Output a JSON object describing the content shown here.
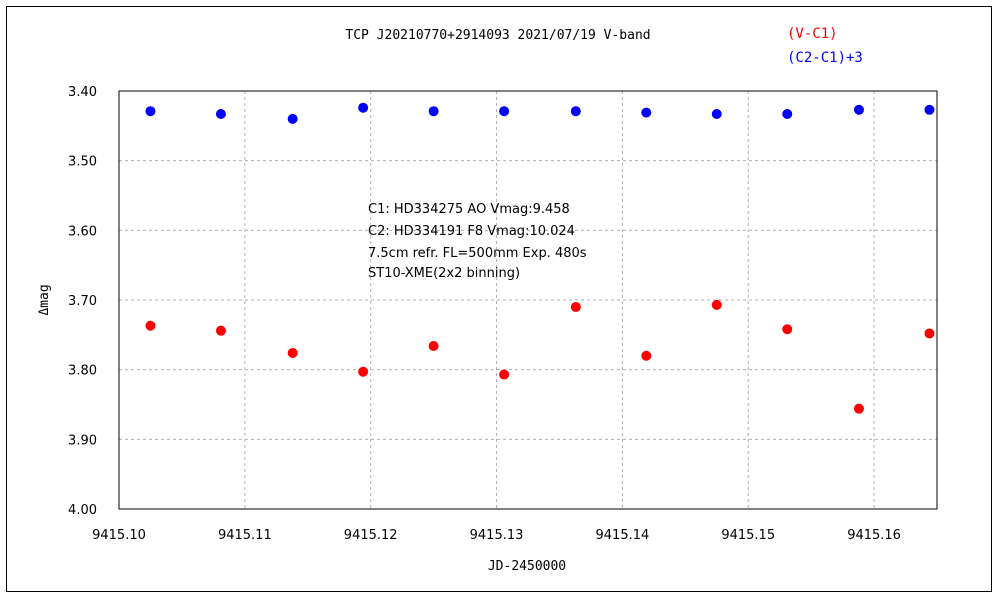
{
  "chart_data": {
    "type": "scatter",
    "title": "TCP J20210770+2914093   2021/07/19   V-band",
    "xlabel": "JD-2450000",
    "ylabel": "Δmag",
    "xlim": [
      9415.1,
      9415.165
    ],
    "ylim": [
      4.0,
      3.4
    ],
    "y_inverted": true,
    "grid": true,
    "x_ticks": [
      "9415.10",
      "9415.11",
      "9415.12",
      "9415.13",
      "9415.14",
      "9415.15",
      "9415.16"
    ],
    "x_tick_values": [
      9415.1,
      9415.11,
      9415.12,
      9415.13,
      9415.14,
      9415.15,
      9415.16
    ],
    "y_ticks": [
      "3.40",
      "3.50",
      "3.60",
      "3.70",
      "3.80",
      "3.90",
      "4.00"
    ],
    "y_tick_values": [
      3.4,
      3.5,
      3.6,
      3.7,
      3.8,
      3.9,
      4.0
    ],
    "legend_placement": "top-right",
    "annotations": [
      "C1: HD334275 AO  Vmag:9.458",
      "C2: HD334191 F8  Vmag:10.024",
      "7.5cm refr. FL=500mm Exp. 480s",
      "ST10-XME(2x2 binning)"
    ],
    "series": [
      {
        "name": "(V-C1)",
        "color": "#ff0000",
        "x": [
          9415.1025,
          9415.1081,
          9415.1138,
          9415.1194,
          9415.125,
          9415.1306,
          9415.1363,
          9415.1419,
          9415.1475,
          9415.1531,
          9415.1588,
          9415.1644
        ],
        "y": [
          3.737,
          3.744,
          3.776,
          3.803,
          3.766,
          3.807,
          3.71,
          3.78,
          3.707,
          3.742,
          3.856,
          3.748
        ]
      },
      {
        "name": "(C2-C1)+3",
        "color": "#0000ff",
        "x": [
          9415.1025,
          9415.1081,
          9415.1138,
          9415.1194,
          9415.125,
          9415.1306,
          9415.1363,
          9415.1419,
          9415.1475,
          9415.1531,
          9415.1588,
          9415.1644
        ],
        "y": [
          3.429,
          3.433,
          3.44,
          3.424,
          3.429,
          3.429,
          3.429,
          3.431,
          3.433,
          3.433,
          3.427,
          3.427
        ]
      }
    ]
  }
}
